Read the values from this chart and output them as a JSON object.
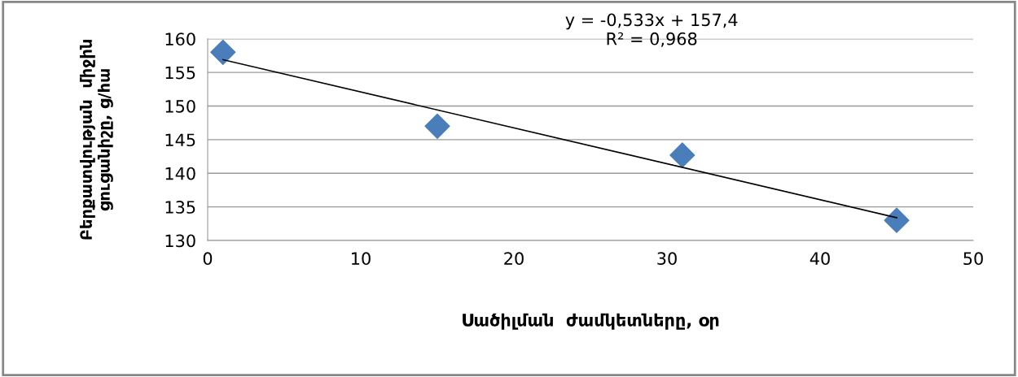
{
  "chart_data": {
    "type": "scatter",
    "xlabel": "Սածիլման  ժամկետները, օր",
    "ylabel": "Բերքատվության  միջին\nցուցանիշը, ց/հա",
    "annotations": [
      "y = -0,533x + 157,4\nR² = 0,968"
    ],
    "series": [
      {
        "color": "#4a7ebb",
        "x": [
          1,
          15,
          31,
          45
        ],
        "values": [
          158,
          147,
          142.7,
          133
        ],
        "marker": "diamond"
      },
      {
        "type": "line",
        "color": "#000000",
        "x": [
          1,
          45
        ],
        "values": [
          156.9,
          133.4
        ],
        "marker": "none",
        "line_style": "solid"
      }
    ],
    "xlim": [
      0,
      50
    ],
    "xticks": [
      0,
      10,
      20,
      30,
      40,
      50
    ],
    "ylim": [
      130,
      160
    ],
    "yticks": [
      130,
      135,
      140,
      145,
      150,
      155,
      160
    ],
    "grid": "y",
    "legend": false
  }
}
